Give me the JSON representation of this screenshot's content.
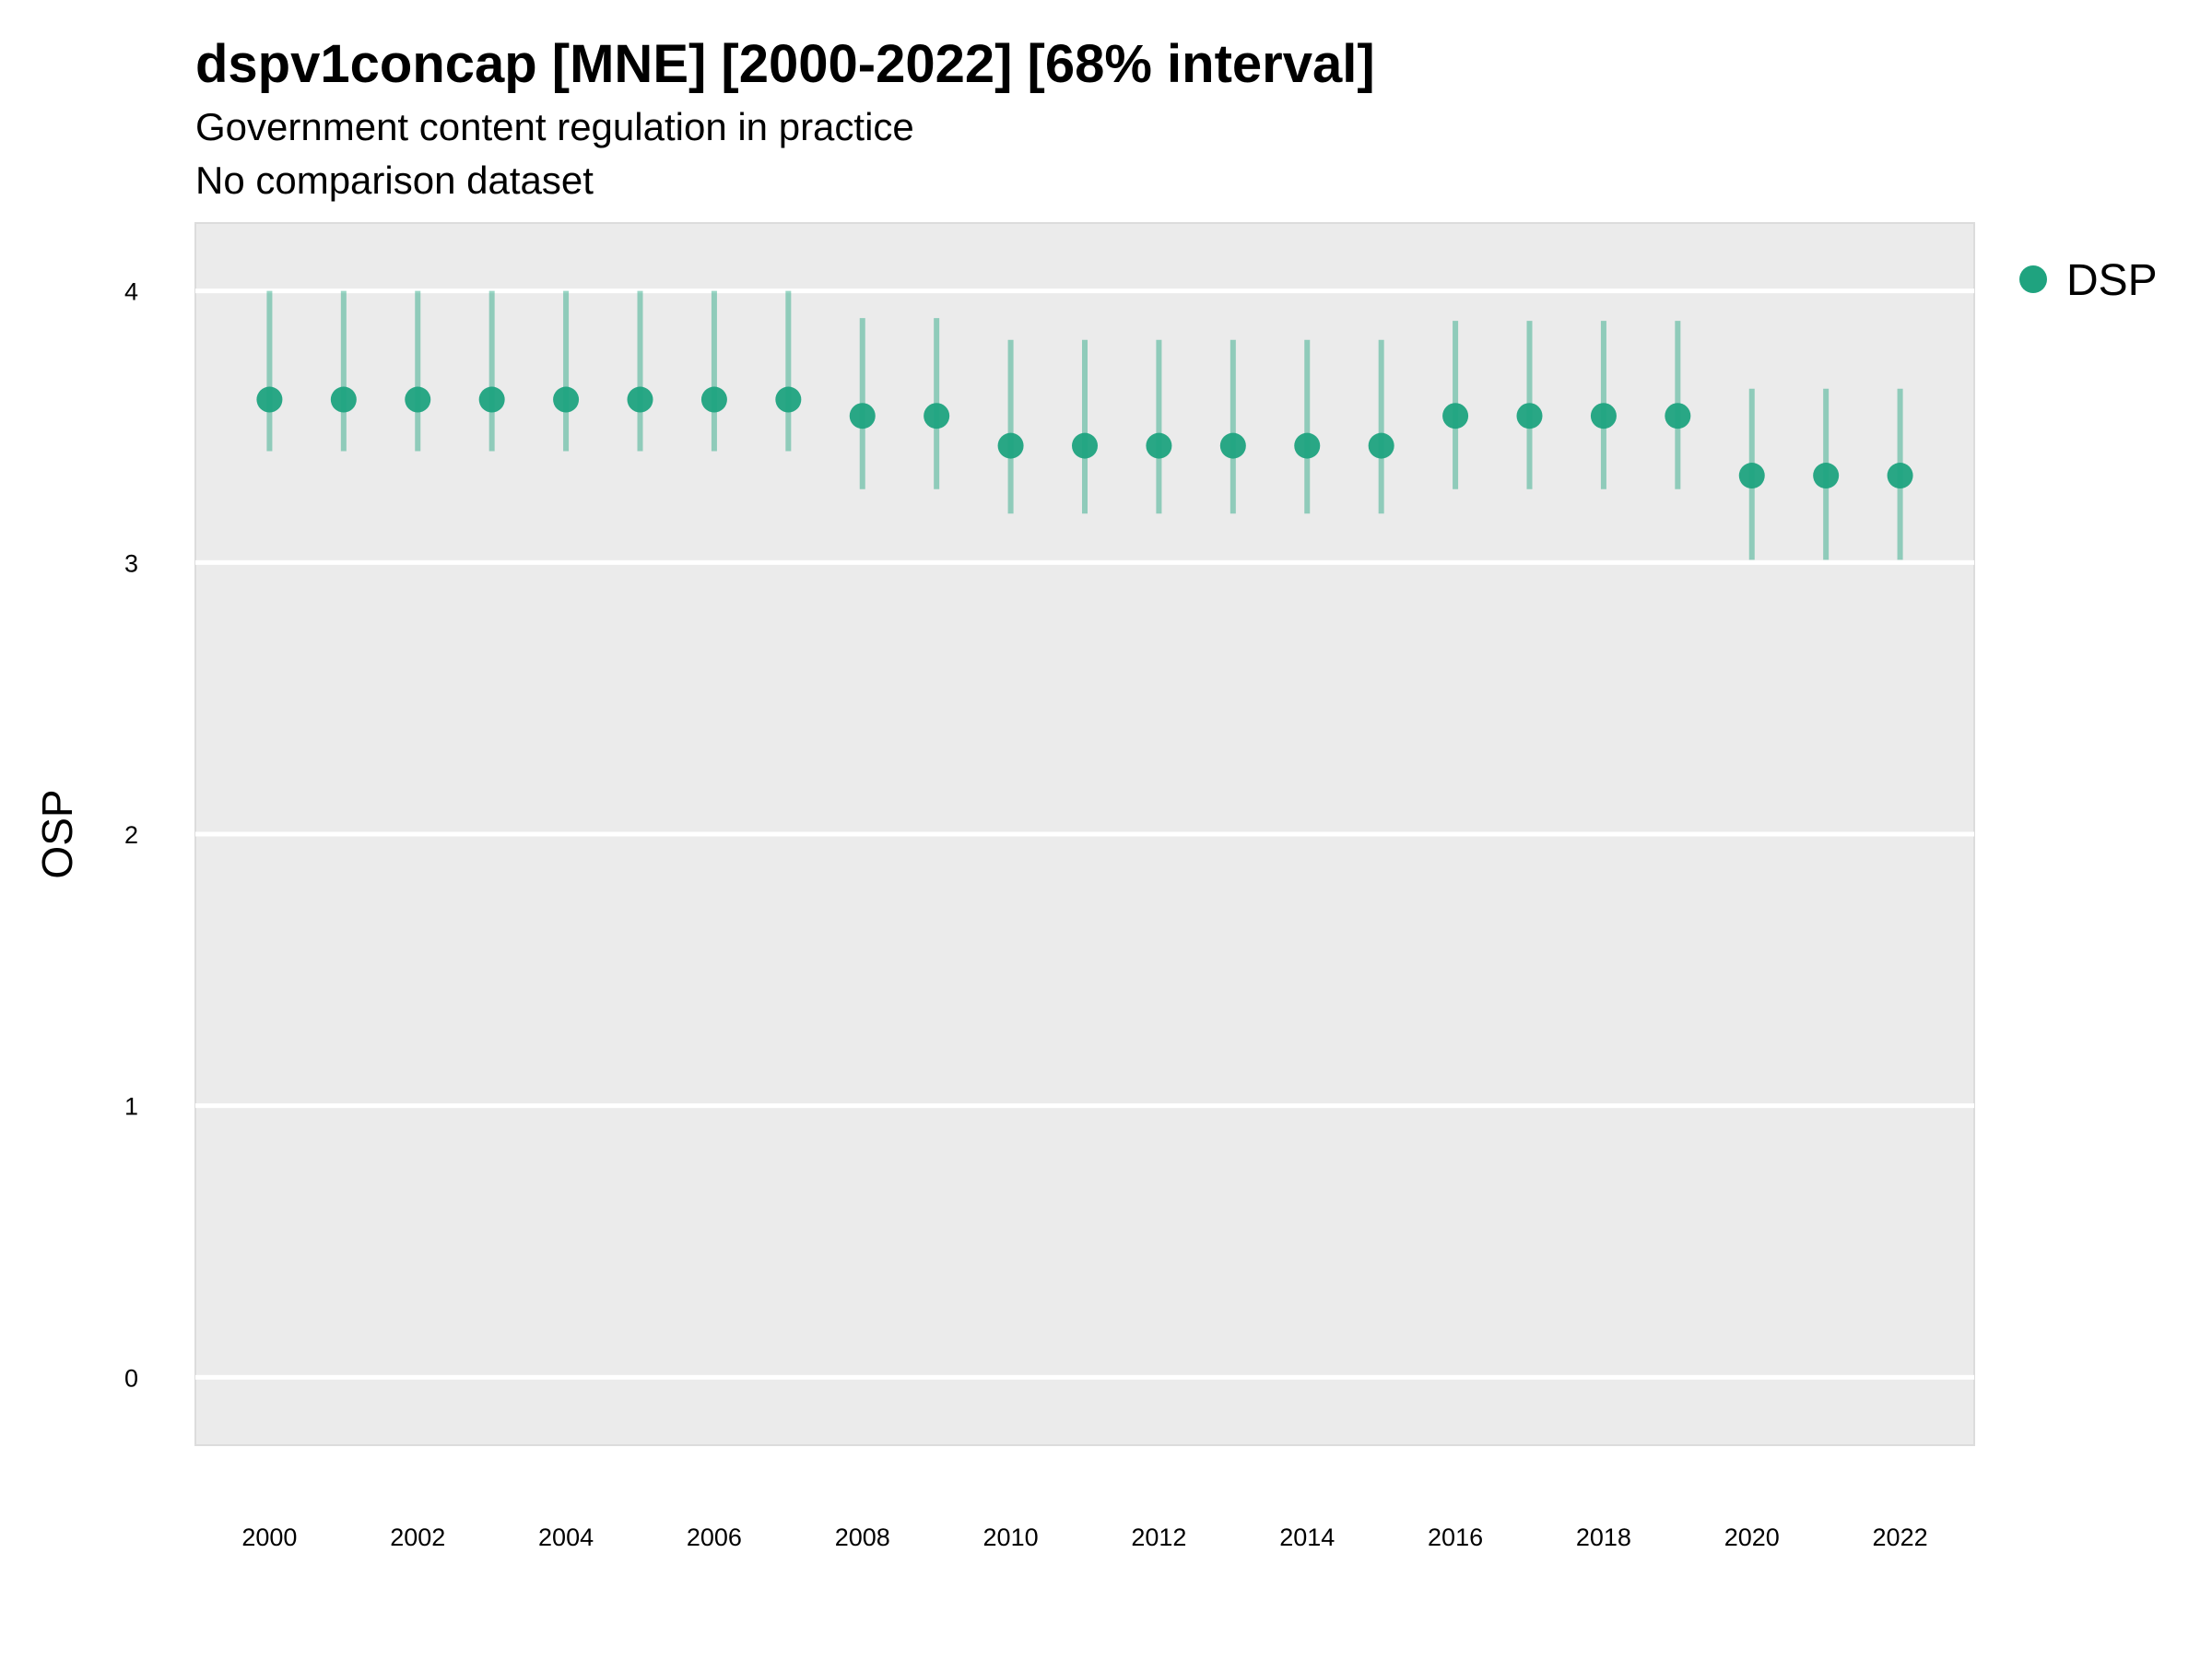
{
  "chart_data": {
    "type": "scatter",
    "title": "dspv1concap [MNE] [2000-2022] [68% interval]",
    "subtitle": "Government content regulation in practice",
    "subtitle2": "No comparison dataset",
    "xlabel": "",
    "ylabel": "OSP",
    "xlim": [
      1999,
      2023
    ],
    "ylim": [
      -0.25,
      4.25
    ],
    "x_ticks": [
      2000,
      2002,
      2004,
      2006,
      2008,
      2010,
      2012,
      2014,
      2016,
      2018,
      2020,
      2022
    ],
    "y_ticks": [
      0,
      1,
      2,
      3,
      4
    ],
    "grid": true,
    "legend_position": "top-right",
    "series": [
      {
        "name": "DSP",
        "color": "#1fa37f",
        "x": [
          2000,
          2001,
          2002,
          2003,
          2004,
          2005,
          2006,
          2007,
          2008,
          2009,
          2010,
          2011,
          2012,
          2013,
          2014,
          2015,
          2016,
          2017,
          2018,
          2019,
          2020,
          2021,
          2022
        ],
        "y": [
          3.6,
          3.6,
          3.6,
          3.6,
          3.6,
          3.6,
          3.6,
          3.6,
          3.54,
          3.54,
          3.43,
          3.43,
          3.43,
          3.43,
          3.43,
          3.43,
          3.54,
          3.54,
          3.54,
          3.54,
          3.32,
          3.32,
          3.32
        ],
        "lower": [
          3.41,
          3.41,
          3.41,
          3.41,
          3.41,
          3.41,
          3.41,
          3.41,
          3.27,
          3.27,
          3.18,
          3.18,
          3.18,
          3.18,
          3.18,
          3.18,
          3.27,
          3.27,
          3.27,
          3.27,
          3.01,
          3.01,
          3.01
        ],
        "upper": [
          4.0,
          4.0,
          4.0,
          4.0,
          4.0,
          4.0,
          4.0,
          4.0,
          3.9,
          3.9,
          3.82,
          3.82,
          3.82,
          3.82,
          3.82,
          3.82,
          3.89,
          3.89,
          3.89,
          3.89,
          3.64,
          3.64,
          3.64
        ]
      }
    ]
  }
}
